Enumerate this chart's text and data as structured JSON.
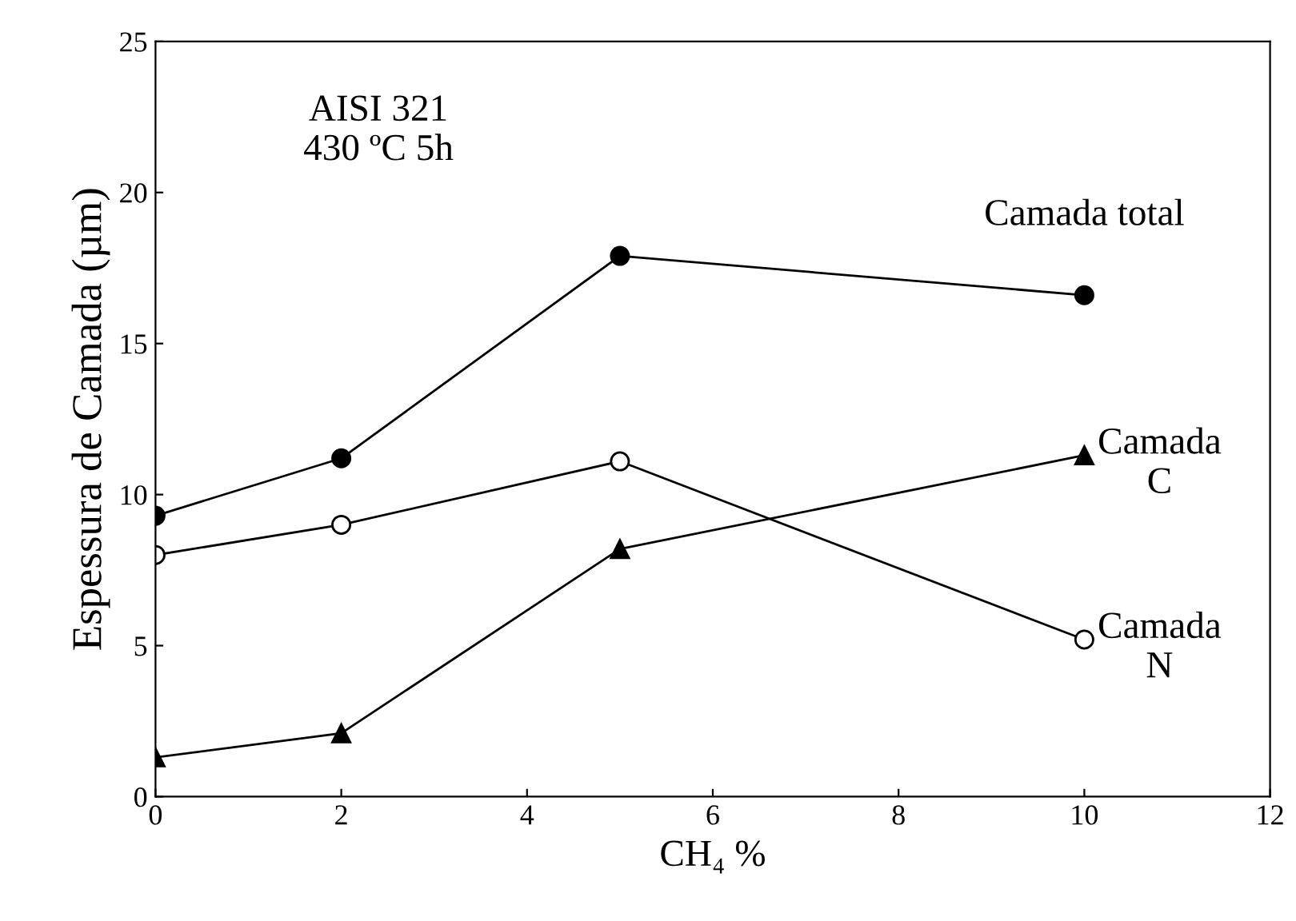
{
  "chart_data": {
    "type": "line",
    "xlabel": "CH₄ %",
    "ylabel": "Espessura de Camada (µm)",
    "x": [
      0,
      2,
      5,
      10
    ],
    "series": [
      {
        "name": "Camada total",
        "color": "#000000",
        "values": [
          9.3,
          11.2,
          17.9,
          16.6
        ],
        "marker": "circle"
      },
      {
        "name": "Camada\nN",
        "color": "#000000",
        "values": [
          8.0,
          9.0,
          11.1,
          5.2
        ],
        "marker": "circle"
      },
      {
        "name": "Camada\nC",
        "color": "#000000",
        "values": [
          1.3,
          2.1,
          8.2,
          11.3
        ],
        "marker": "triangle"
      }
    ],
    "annotations": [
      "AISI 321\n430 ºC 5h"
    ],
    "xlim": [
      0,
      12
    ],
    "xticks": [
      0,
      2,
      4,
      6,
      8,
      10,
      12
    ],
    "ylim": [
      0,
      25
    ],
    "yticks": [
      0,
      5,
      10,
      15,
      20,
      25
    ],
    "grid": false,
    "legend": false
  }
}
